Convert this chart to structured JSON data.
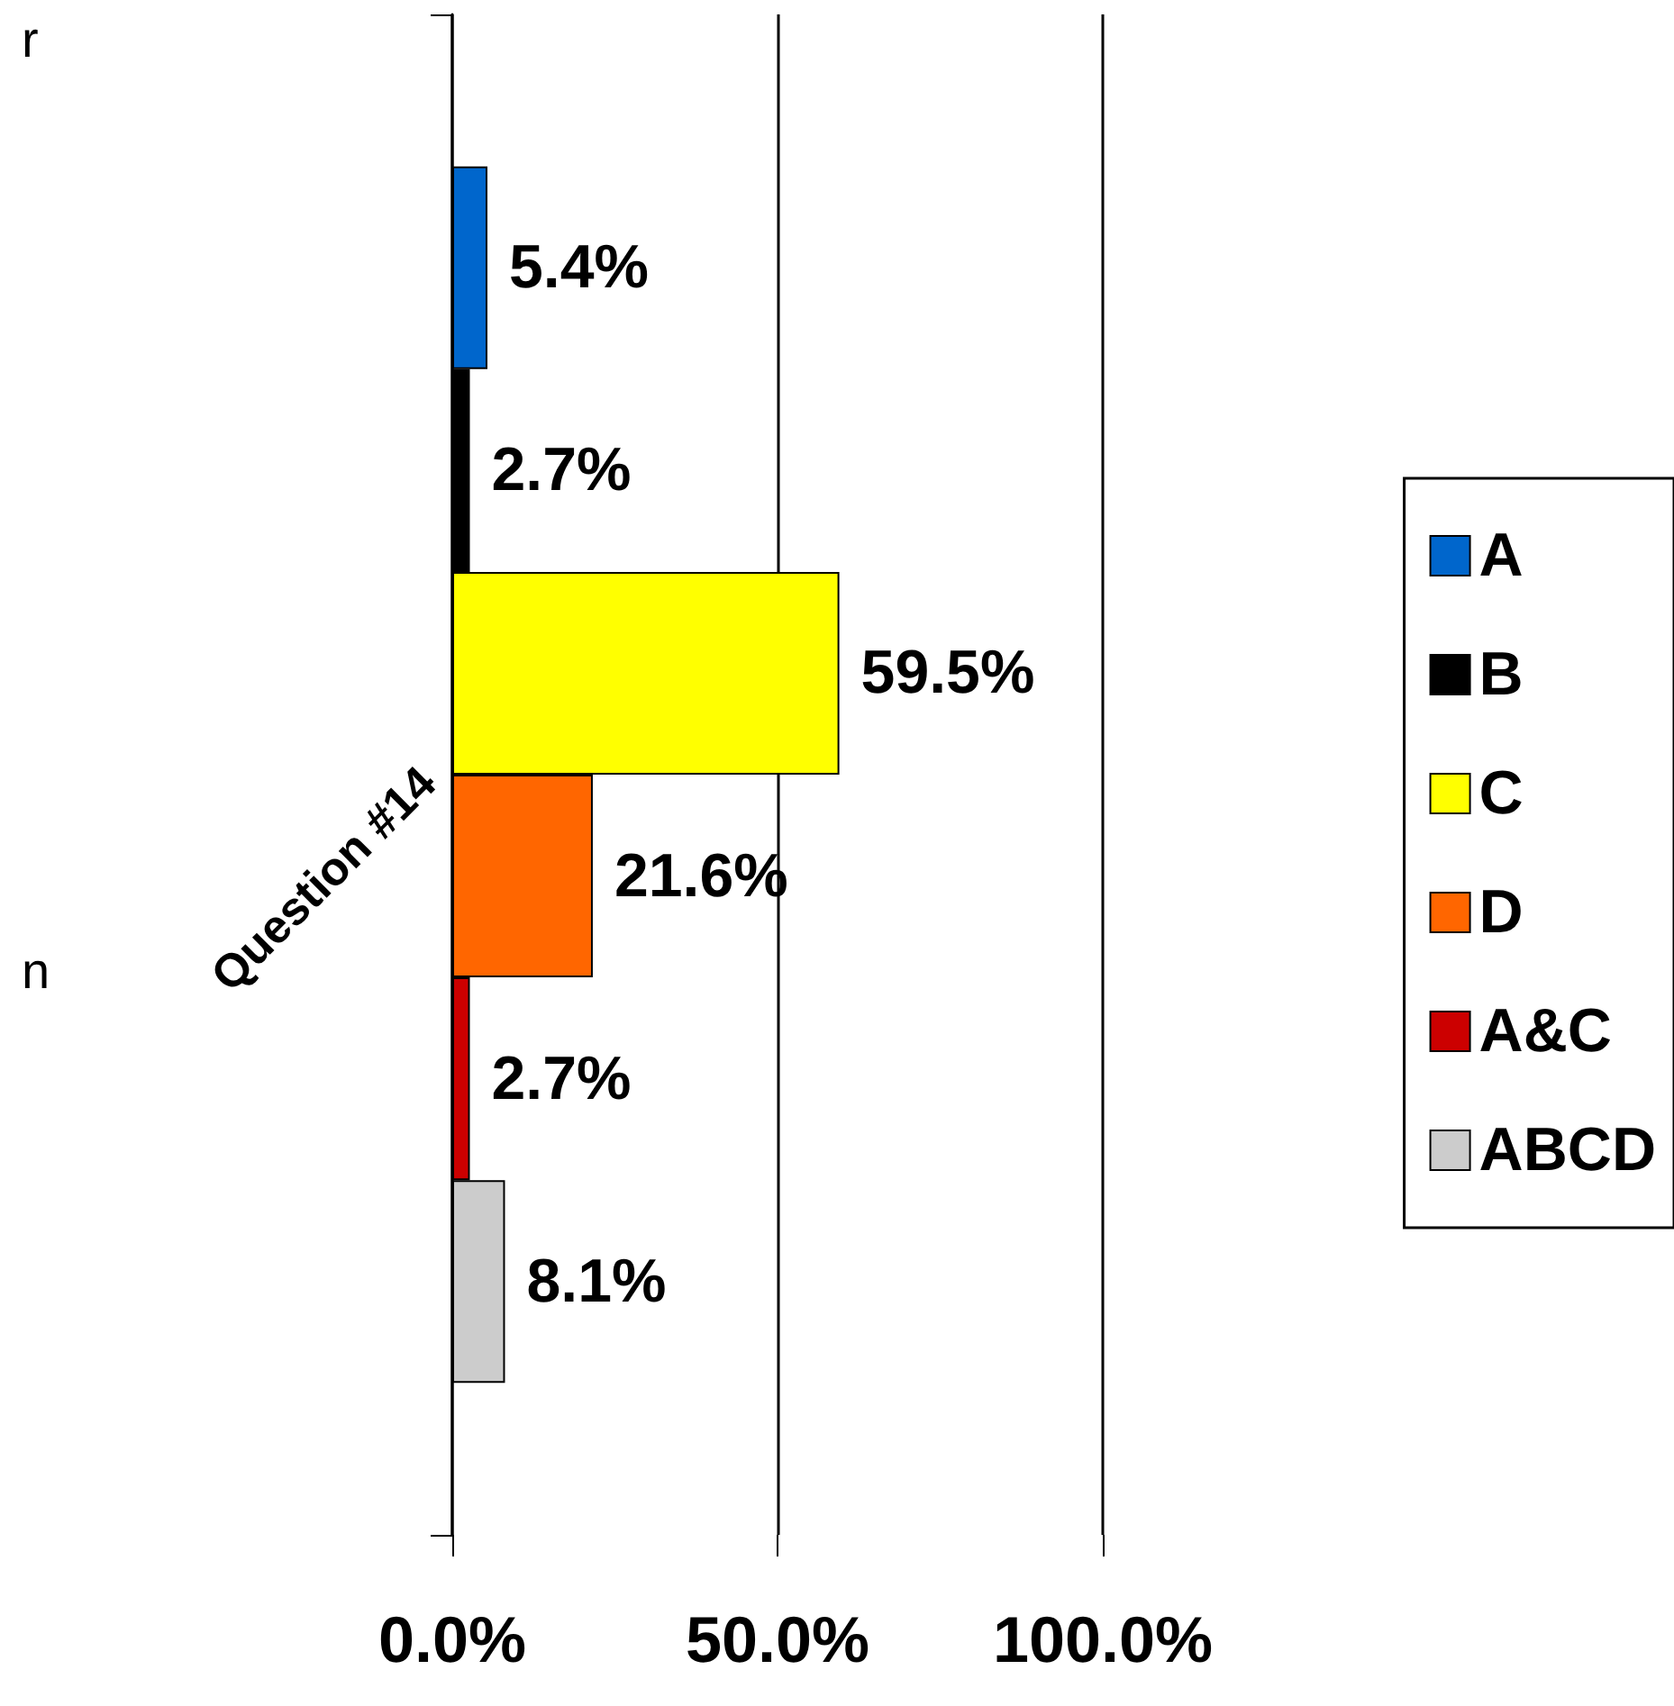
{
  "chart_data": {
    "type": "bar",
    "orientation": "horizontal",
    "categories": [
      "Question #14"
    ],
    "series": [
      {
        "name": "A",
        "color": "#0066cc",
        "values": [
          5.4
        ],
        "value_labels": [
          "5.4%"
        ]
      },
      {
        "name": "B",
        "color": "#000000",
        "values": [
          2.7
        ],
        "value_labels": [
          "2.7%"
        ]
      },
      {
        "name": "C",
        "color": "#ffff00",
        "values": [
          59.5
        ],
        "value_labels": [
          "59.5%"
        ]
      },
      {
        "name": "D",
        "color": "#ff6600",
        "values": [
          21.6
        ],
        "value_labels": [
          "21.6%"
        ]
      },
      {
        "name": "A&C",
        "color": "#cc0000",
        "values": [
          2.7
        ],
        "value_labels": [
          "2.7%"
        ]
      },
      {
        "name": "ABCD",
        "color": "#cccccc",
        "values": [
          8.1
        ],
        "value_labels": [
          "8.1%"
        ]
      }
    ],
    "xlim": [
      0,
      100
    ],
    "xticks": [
      {
        "value": 0,
        "label": "0.0%"
      },
      {
        "value": 50,
        "label": "50.0%"
      },
      {
        "value": 100,
        "label": "100.0%"
      }
    ],
    "grid": "x",
    "legend": "right",
    "annotations": [
      "r",
      "n"
    ]
  }
}
